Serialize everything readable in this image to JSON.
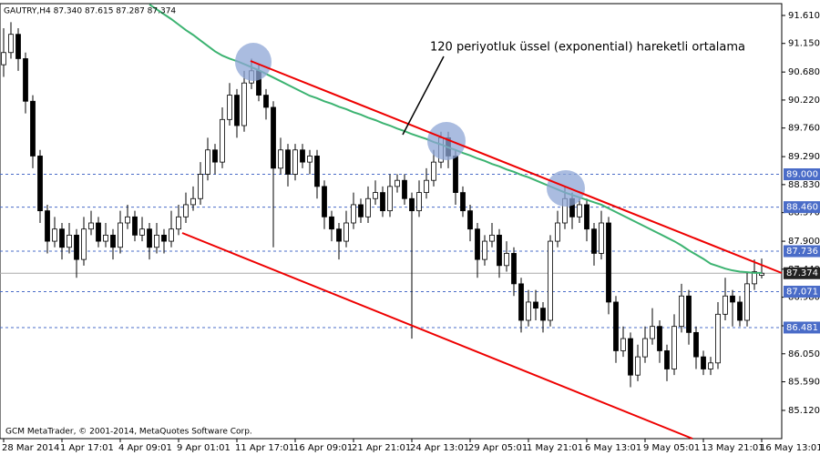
{
  "chart_data": {
    "type": "candlestick",
    "title": "GAUTRY,H4  87.340 87.615 87.287 87.374",
    "footer": "GCM MetaTrader, © 2001-2014, MetaQuotes Software Corp.",
    "annotation": "120 periyotluk üssel (exponential) hareketli ortalama",
    "categories": [
      "28 Mar 2014",
      null,
      null,
      null,
      null,
      null,
      null,
      null,
      "1 Apr 17:01",
      null,
      null,
      null,
      null,
      null,
      null,
      null,
      "4 Apr 09:01",
      null,
      null,
      null,
      null,
      null,
      null,
      null,
      "9 Apr 01:01",
      null,
      null,
      null,
      null,
      null,
      null,
      null,
      "11 Apr 17:01",
      null,
      null,
      null,
      null,
      null,
      null,
      null,
      "16 Apr 09:01",
      null,
      null,
      null,
      null,
      null,
      null,
      null,
      "21 Apr 21:01",
      null,
      null,
      null,
      null,
      null,
      null,
      null,
      "24 Apr 13:01",
      null,
      null,
      null,
      null,
      null,
      null,
      null,
      "29 Apr 05:01",
      null,
      null,
      null,
      null,
      null,
      null,
      null,
      "1 May 21:01",
      null,
      null,
      null,
      null,
      null,
      null,
      null,
      "6 May 13:01",
      null,
      null,
      null,
      null,
      null,
      null,
      null,
      "9 May 05:01",
      null,
      null,
      null,
      null,
      null,
      null,
      null,
      "13 May 21:01",
      null,
      null,
      null,
      null,
      null,
      null,
      null,
      "16 May 13:01"
    ],
    "open": [
      90.8,
      91.0,
      91.3,
      90.9,
      90.2,
      89.3,
      88.4,
      87.9,
      88.1,
      87.8,
      88.0,
      87.6,
      88.1,
      88.2,
      87.9,
      88.0,
      87.8,
      88.2,
      88.3,
      88.0,
      88.1,
      87.8,
      88.0,
      87.9,
      88.1,
      88.3,
      88.5,
      88.6,
      89.0,
      89.4,
      89.2,
      89.9,
      90.3,
      89.8,
      90.5,
      90.7,
      90.3,
      90.1,
      89.1,
      89.4,
      89.0,
      89.4,
      89.2,
      89.3,
      88.8,
      88.3,
      88.1,
      87.9,
      88.2,
      88.5,
      88.3,
      88.6,
      88.7,
      88.4,
      88.8,
      88.9,
      88.6,
      88.4,
      88.7,
      88.9,
      89.2,
      89.6,
      89.3,
      88.7,
      88.4,
      88.1,
      87.6,
      87.9,
      88.0,
      87.5,
      87.7,
      87.2,
      86.6,
      86.9,
      86.8,
      86.6,
      87.9,
      88.2,
      88.6,
      88.3,
      88.5,
      88.1,
      87.7,
      88.2,
      86.9,
      86.1,
      86.3,
      85.7,
      86.0,
      86.3,
      86.5,
      86.1,
      85.8,
      86.5,
      87.0,
      86.4,
      86.0,
      85.8,
      85.9,
      86.7,
      87.0,
      86.9,
      86.6,
      87.2,
      87.34
    ],
    "high": [
      91.4,
      91.5,
      91.4,
      91.0,
      90.3,
      89.4,
      88.5,
      88.3,
      88.2,
      88.2,
      88.1,
      88.3,
      88.4,
      88.3,
      88.2,
      88.1,
      88.4,
      88.5,
      88.4,
      88.3,
      88.2,
      88.2,
      88.1,
      88.4,
      88.5,
      88.7,
      88.8,
      89.2,
      89.6,
      89.5,
      90.1,
      90.5,
      90.4,
      90.7,
      90.9,
      90.8,
      90.4,
      90.2,
      89.6,
      89.5,
      89.5,
      89.5,
      89.4,
      89.4,
      88.9,
      88.4,
      88.2,
      88.4,
      88.7,
      88.6,
      88.8,
      88.9,
      88.8,
      89.0,
      89.0,
      89.0,
      88.7,
      88.9,
      89.1,
      89.4,
      89.7,
      89.7,
      89.4,
      88.8,
      88.5,
      88.2,
      88.0,
      88.2,
      88.1,
      87.9,
      87.8,
      87.3,
      87.1,
      87.1,
      86.9,
      88.0,
      88.4,
      88.8,
      88.7,
      88.6,
      88.6,
      88.2,
      88.4,
      88.3,
      87.0,
      86.5,
      86.4,
      86.2,
      86.5,
      86.8,
      86.6,
      86.2,
      86.7,
      87.2,
      87.1,
      86.5,
      86.1,
      86.0,
      86.9,
      87.3,
      87.1,
      87.0,
      87.4,
      87.6,
      87.615
    ],
    "low": [
      90.6,
      90.9,
      90.7,
      90.0,
      89.1,
      88.2,
      87.7,
      87.8,
      87.6,
      87.7,
      87.3,
      87.5,
      88.0,
      87.8,
      87.8,
      87.6,
      87.7,
      88.1,
      87.9,
      87.9,
      87.6,
      87.7,
      87.7,
      87.8,
      88.0,
      88.2,
      88.4,
      88.5,
      88.9,
      89.0,
      89.1,
      89.8,
      89.6,
      89.7,
      90.4,
      90.2,
      89.9,
      87.8,
      89.0,
      88.8,
      88.9,
      89.1,
      89.0,
      88.6,
      88.1,
      87.9,
      87.6,
      87.8,
      88.1,
      88.2,
      88.2,
      88.5,
      88.3,
      88.3,
      88.7,
      88.5,
      86.3,
      88.3,
      88.6,
      88.8,
      89.1,
      89.1,
      88.5,
      88.3,
      87.9,
      87.3,
      87.5,
      87.8,
      87.3,
      87.4,
      87.0,
      86.4,
      86.5,
      86.6,
      86.4,
      86.5,
      87.8,
      88.1,
      88.1,
      88.2,
      87.9,
      87.5,
      87.6,
      86.7,
      85.9,
      86.0,
      85.5,
      85.6,
      85.9,
      86.2,
      85.9,
      85.6,
      85.7,
      86.4,
      86.2,
      85.8,
      85.7,
      85.7,
      85.8,
      86.6,
      86.5,
      86.5,
      86.5,
      87.1,
      87.287
    ],
    "close": [
      91.0,
      91.3,
      90.9,
      90.2,
      89.3,
      88.4,
      87.9,
      88.1,
      87.8,
      88.0,
      87.6,
      88.1,
      88.2,
      87.9,
      88.0,
      87.8,
      88.2,
      88.3,
      88.0,
      88.1,
      87.8,
      88.0,
      87.9,
      88.1,
      88.3,
      88.5,
      88.6,
      89.0,
      89.4,
      89.2,
      89.9,
      90.3,
      89.8,
      90.5,
      90.7,
      90.3,
      90.1,
      89.1,
      89.4,
      89.0,
      89.4,
      89.2,
      89.3,
      88.8,
      88.3,
      88.1,
      87.9,
      88.2,
      88.5,
      88.3,
      88.6,
      88.7,
      88.4,
      88.8,
      88.9,
      88.6,
      88.4,
      88.7,
      88.9,
      89.2,
      89.6,
      89.3,
      88.7,
      88.4,
      88.1,
      87.6,
      87.9,
      88.0,
      87.5,
      87.7,
      87.2,
      86.6,
      86.9,
      86.8,
      86.6,
      87.9,
      88.2,
      88.6,
      88.3,
      88.5,
      88.1,
      87.7,
      88.2,
      86.9,
      86.1,
      86.3,
      85.7,
      86.0,
      86.3,
      86.5,
      86.1,
      85.8,
      86.5,
      87.0,
      86.4,
      86.0,
      85.8,
      85.9,
      86.7,
      87.0,
      86.9,
      86.6,
      87.2,
      87.4,
      87.374
    ],
    "ema": {
      "color": "#3cb371",
      "values": [
        null,
        null,
        null,
        null,
        null,
        null,
        null,
        null,
        null,
        null,
        null,
        null,
        null,
        null,
        null,
        null,
        null,
        null,
        null,
        null,
        91.79,
        91.71,
        91.63,
        91.55,
        91.46,
        91.37,
        91.29,
        91.2,
        91.11,
        91.02,
        90.95,
        90.9,
        90.86,
        90.81,
        90.76,
        90.71,
        90.65,
        90.59,
        90.53,
        90.47,
        90.41,
        90.35,
        90.29,
        90.25,
        90.2,
        90.16,
        90.11,
        90.07,
        90.02,
        89.98,
        89.93,
        89.89,
        89.84,
        89.8,
        89.75,
        89.71,
        89.66,
        89.62,
        89.58,
        89.53,
        89.49,
        89.44,
        89.4,
        89.35,
        89.31,
        89.26,
        89.22,
        89.17,
        89.13,
        89.08,
        89.04,
        88.99,
        88.95,
        88.9,
        88.85,
        88.8,
        88.75,
        88.7,
        88.66,
        88.62,
        88.58,
        88.54,
        88.5,
        88.44,
        88.38,
        88.32,
        88.26,
        88.2,
        88.14,
        88.08,
        88.02,
        87.96,
        87.9,
        87.83,
        87.75,
        87.68,
        87.61,
        87.53,
        87.49,
        87.45,
        87.42,
        87.4,
        87.39,
        87.38,
        87.38
      ]
    },
    "levels": [
      {
        "value": 89.0,
        "label": "89.000"
      },
      {
        "value": 88.46,
        "label": "88.460"
      },
      {
        "value": 87.736,
        "label": "87.736"
      },
      {
        "value": 87.071,
        "label": "87.071"
      },
      {
        "value": 86.481,
        "label": "86.481"
      }
    ],
    "level_color": "#4a6cc8",
    "last_price": {
      "value": 87.374,
      "label": "87.374"
    },
    "ylim": [
      84.656,
      91.804
    ],
    "yticks": [
      {
        "value": 91.61,
        "label": "91.610"
      },
      {
        "value": 91.15,
        "label": "91.150"
      },
      {
        "value": 90.68,
        "label": "90.680"
      },
      {
        "value": 90.22,
        "label": "90.220"
      },
      {
        "value": 89.76,
        "label": "89.760"
      },
      {
        "value": 89.29,
        "label": "89.290"
      },
      {
        "value": 88.83,
        "label": "88.830"
      },
      {
        "value": 88.37,
        "label": "88.370"
      },
      {
        "value": 87.9,
        "label": "87.900"
      },
      {
        "value": 87.44,
        "label": "87.440"
      },
      {
        "value": 86.98,
        "label": "86.980"
      },
      {
        "value": 86.51,
        "label": "86.510"
      },
      {
        "value": 86.05,
        "label": "86.050"
      },
      {
        "value": 85.59,
        "label": "85.590"
      },
      {
        "value": 85.12,
        "label": "85.120"
      }
    ]
  }
}
